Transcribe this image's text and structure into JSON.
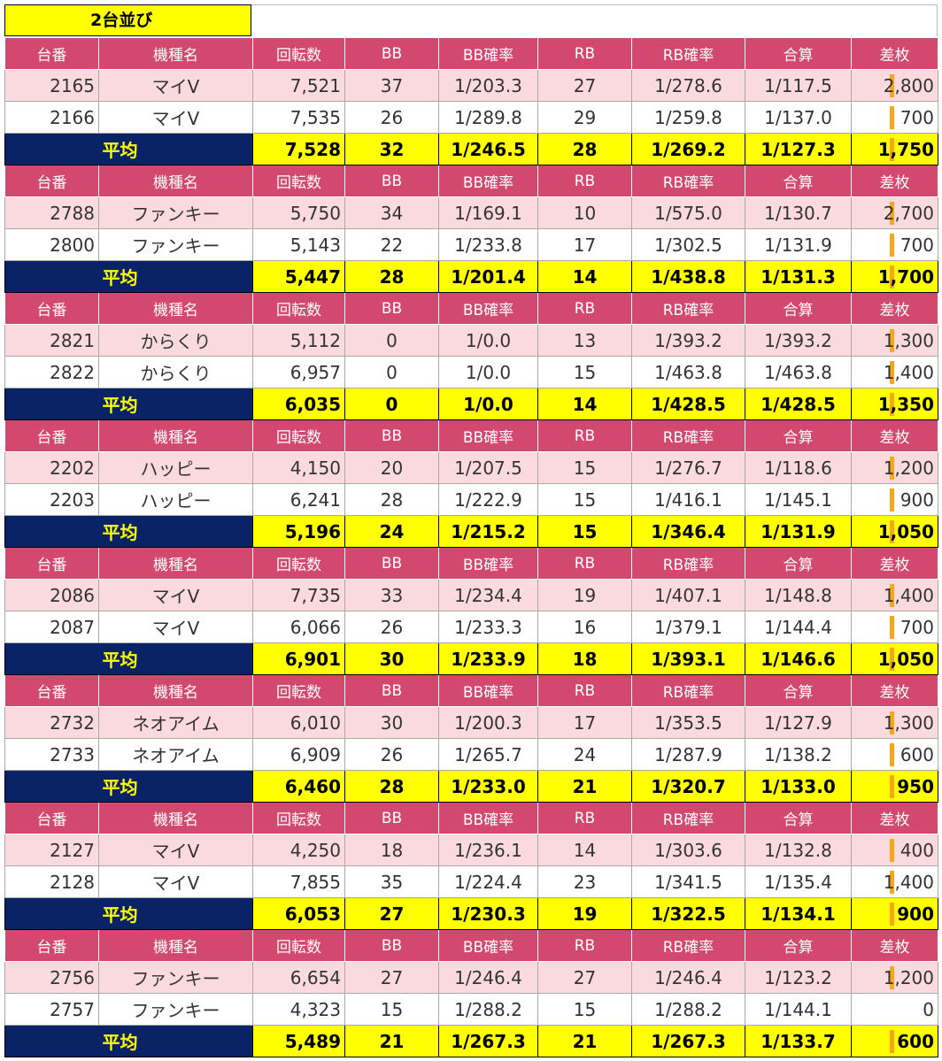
{
  "title": "2台並び",
  "headers": [
    "台番",
    "機種名",
    "回転数",
    "BB",
    "BB確率",
    "RB",
    "RB確率",
    "合算",
    "差枚"
  ],
  "avg_label": "平均",
  "diff_bar_color": "#f7a51a",
  "groups": [
    {
      "rows": [
        {
          "no": "2165",
          "model": "マイV",
          "spins": "7,521",
          "bb": "37",
          "bb_rate": "1/203.3",
          "rb": "27",
          "rb_rate": "1/278.6",
          "total": "1/117.5",
          "diff": "2,800",
          "diff_value": 2800
        },
        {
          "no": "2166",
          "model": "マイV",
          "spins": "7,535",
          "bb": "26",
          "bb_rate": "1/289.8",
          "rb": "29",
          "rb_rate": "1/259.8",
          "total": "1/137.0",
          "diff": "700",
          "diff_value": 700
        }
      ],
      "avg": {
        "spins": "7,528",
        "bb": "32",
        "bb_rate": "1/246.5",
        "rb": "28",
        "rb_rate": "1/269.2",
        "total": "1/127.3",
        "diff": "1,750",
        "diff_value": 1750
      }
    },
    {
      "rows": [
        {
          "no": "2788",
          "model": "ファンキー",
          "spins": "5,750",
          "bb": "34",
          "bb_rate": "1/169.1",
          "rb": "10",
          "rb_rate": "1/575.0",
          "total": "1/130.7",
          "diff": "2,700",
          "diff_value": 2700
        },
        {
          "no": "2800",
          "model": "ファンキー",
          "spins": "5,143",
          "bb": "22",
          "bb_rate": "1/233.8",
          "rb": "17",
          "rb_rate": "1/302.5",
          "total": "1/131.9",
          "diff": "700",
          "diff_value": 700
        }
      ],
      "avg": {
        "spins": "5,447",
        "bb": "28",
        "bb_rate": "1/201.4",
        "rb": "14",
        "rb_rate": "1/438.8",
        "total": "1/131.3",
        "diff": "1,700",
        "diff_value": 1700
      }
    },
    {
      "rows": [
        {
          "no": "2821",
          "model": "からくり",
          "spins": "5,112",
          "bb": "0",
          "bb_rate": "1/0.0",
          "rb": "13",
          "rb_rate": "1/393.2",
          "total": "1/393.2",
          "diff": "1,300",
          "diff_value": 1300
        },
        {
          "no": "2822",
          "model": "からくり",
          "spins": "6,957",
          "bb": "0",
          "bb_rate": "1/0.0",
          "rb": "15",
          "rb_rate": "1/463.8",
          "total": "1/463.8",
          "diff": "1,400",
          "diff_value": 1400
        }
      ],
      "avg": {
        "spins": "6,035",
        "bb": "0",
        "bb_rate": "1/0.0",
        "rb": "14",
        "rb_rate": "1/428.5",
        "total": "1/428.5",
        "diff": "1,350",
        "diff_value": 1350
      }
    },
    {
      "rows": [
        {
          "no": "2202",
          "model": "ハッピー",
          "spins": "4,150",
          "bb": "20",
          "bb_rate": "1/207.5",
          "rb": "15",
          "rb_rate": "1/276.7",
          "total": "1/118.6",
          "diff": "1,200",
          "diff_value": 1200
        },
        {
          "no": "2203",
          "model": "ハッピー",
          "spins": "6,241",
          "bb": "28",
          "bb_rate": "1/222.9",
          "rb": "15",
          "rb_rate": "1/416.1",
          "total": "1/145.1",
          "diff": "900",
          "diff_value": 900
        }
      ],
      "avg": {
        "spins": "5,196",
        "bb": "24",
        "bb_rate": "1/215.2",
        "rb": "15",
        "rb_rate": "1/346.4",
        "total": "1/131.9",
        "diff": "1,050",
        "diff_value": 1050
      }
    },
    {
      "rows": [
        {
          "no": "2086",
          "model": "マイV",
          "spins": "7,735",
          "bb": "33",
          "bb_rate": "1/234.4",
          "rb": "19",
          "rb_rate": "1/407.1",
          "total": "1/148.8",
          "diff": "1,400",
          "diff_value": 1400
        },
        {
          "no": "2087",
          "model": "マイV",
          "spins": "6,066",
          "bb": "26",
          "bb_rate": "1/233.3",
          "rb": "16",
          "rb_rate": "1/379.1",
          "total": "1/144.4",
          "diff": "700",
          "diff_value": 700
        }
      ],
      "avg": {
        "spins": "6,901",
        "bb": "30",
        "bb_rate": "1/233.9",
        "rb": "18",
        "rb_rate": "1/393.1",
        "total": "1/146.6",
        "diff": "1,050",
        "diff_value": 1050
      }
    },
    {
      "rows": [
        {
          "no": "2732",
          "model": "ネオアイム",
          "spins": "6,010",
          "bb": "30",
          "bb_rate": "1/200.3",
          "rb": "17",
          "rb_rate": "1/353.5",
          "total": "1/127.9",
          "diff": "1,300",
          "diff_value": 1300
        },
        {
          "no": "2733",
          "model": "ネオアイム",
          "spins": "6,909",
          "bb": "26",
          "bb_rate": "1/265.7",
          "rb": "24",
          "rb_rate": "1/287.9",
          "total": "1/138.2",
          "diff": "600",
          "diff_value": 600
        }
      ],
      "avg": {
        "spins": "6,460",
        "bb": "28",
        "bb_rate": "1/233.0",
        "rb": "21",
        "rb_rate": "1/320.7",
        "total": "1/133.0",
        "diff": "950",
        "diff_value": 950
      }
    },
    {
      "rows": [
        {
          "no": "2127",
          "model": "マイV",
          "spins": "4,250",
          "bb": "18",
          "bb_rate": "1/236.1",
          "rb": "14",
          "rb_rate": "1/303.6",
          "total": "1/132.8",
          "diff": "400",
          "diff_value": 400
        },
        {
          "no": "2128",
          "model": "マイV",
          "spins": "7,855",
          "bb": "35",
          "bb_rate": "1/224.4",
          "rb": "23",
          "rb_rate": "1/341.5",
          "total": "1/135.4",
          "diff": "1,400",
          "diff_value": 1400
        }
      ],
      "avg": {
        "spins": "6,053",
        "bb": "27",
        "bb_rate": "1/230.3",
        "rb": "19",
        "rb_rate": "1/322.5",
        "total": "1/134.1",
        "diff": "900",
        "diff_value": 900
      }
    },
    {
      "rows": [
        {
          "no": "2756",
          "model": "ファンキー",
          "spins": "6,654",
          "bb": "27",
          "bb_rate": "1/246.4",
          "rb": "27",
          "rb_rate": "1/246.4",
          "total": "1/123.2",
          "diff": "1,200",
          "diff_value": 1200
        },
        {
          "no": "2757",
          "model": "ファンキー",
          "spins": "4,323",
          "bb": "15",
          "bb_rate": "1/288.2",
          "rb": "15",
          "rb_rate": "1/288.2",
          "total": "1/144.1",
          "diff": "0",
          "diff_value": 0
        }
      ],
      "avg": {
        "spins": "5,489",
        "bb": "21",
        "bb_rate": "1/267.3",
        "rb": "21",
        "rb_rate": "1/267.3",
        "total": "1/133.7",
        "diff": "600",
        "diff_value": 600
      }
    }
  ]
}
